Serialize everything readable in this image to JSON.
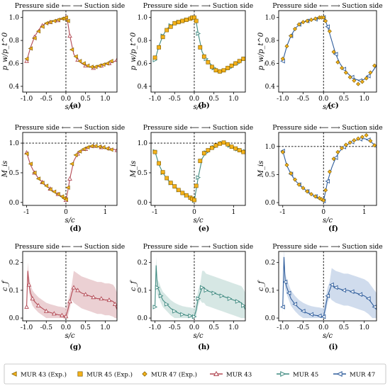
{
  "header_text": "Pressure side ⟵ ⟶ Suction side",
  "header_left": "Pressure side",
  "header_right": "Suction side",
  "panel_labels": [
    "(a)",
    "(b)",
    "(c)",
    "(d)",
    "(e)",
    "(f)",
    "(g)",
    "(h)",
    "(i)"
  ],
  "colors": {
    "mur43_line": "#b34a55",
    "mur45_line": "#3f8a80",
    "mur47_line": "#2f5d9c",
    "exp_fill": "#f5b21a",
    "exp_edge": "#7a5a00",
    "mur43_band": "#e7c8cb",
    "mur45_band": "#cfe3df",
    "mur47_band": "#c8d6ea"
  },
  "legend": [
    {
      "label": "MUR 43 (Exp.)",
      "icon": "left-triangle-marker"
    },
    {
      "label": "MUR 45 (Exp.)",
      "icon": "square-marker"
    },
    {
      "label": "MUR 47 (Exp.)",
      "icon": "diamond-marker"
    },
    {
      "label": "MUR 43",
      "icon": "line-up-triangle"
    },
    {
      "label": "MUR 45",
      "icon": "line-right-triangle"
    },
    {
      "label": "MUR 47",
      "icon": "line-left-triangle"
    }
  ],
  "chart_data": [
    {
      "type": "line",
      "panel": "(a)",
      "xlabel": "s/c",
      "ylabel": "p_w/p_t^0",
      "xlim": [
        -1.1,
        1.3
      ],
      "ylim": [
        0.35,
        1.06
      ],
      "xticks": [
        -1.0,
        -0.5,
        0.0,
        0.5,
        1.0
      ],
      "yticks": [
        0.4,
        0.6,
        0.8,
        1.0
      ],
      "vline": 0.0,
      "series": [
        {
          "name": "MUR 43",
          "x": [
            -1.0,
            -0.9,
            -0.8,
            -0.7,
            -0.6,
            -0.5,
            -0.4,
            -0.3,
            -0.2,
            -0.1,
            0.0,
            0.05,
            0.1,
            0.2,
            0.3,
            0.4,
            0.5,
            0.6,
            0.7,
            0.8,
            0.9,
            1.0,
            1.1,
            1.2,
            1.3
          ],
          "y": [
            0.62,
            0.74,
            0.83,
            0.89,
            0.93,
            0.95,
            0.96,
            0.97,
            0.975,
            0.985,
            1.0,
            0.95,
            0.84,
            0.68,
            0.63,
            0.6,
            0.58,
            0.57,
            0.56,
            0.57,
            0.58,
            0.59,
            0.6,
            0.61,
            0.63
          ]
        }
      ],
      "experimental": {
        "name": "MUR 43 (Exp.)",
        "x": [
          -1.0,
          -0.9,
          -0.8,
          -0.7,
          -0.6,
          -0.5,
          -0.4,
          -0.3,
          -0.2,
          -0.1,
          -0.05,
          0.0,
          0.05,
          0.15,
          0.25,
          0.35,
          0.45,
          0.55,
          0.65,
          0.75,
          0.85,
          0.95,
          1.05,
          1.15
        ],
        "y": [
          0.64,
          0.73,
          0.82,
          0.88,
          0.92,
          0.95,
          0.96,
          0.97,
          0.98,
          0.99,
          0.99,
          1.0,
          0.97,
          0.72,
          0.66,
          0.62,
          0.6,
          0.58,
          0.57,
          0.57,
          0.58,
          0.59,
          0.6,
          0.62
        ]
      }
    },
    {
      "type": "line",
      "panel": "(b)",
      "xlabel": "s/c",
      "ylabel": "p_w/p_t^0",
      "xlim": [
        -1.1,
        1.3
      ],
      "ylim": [
        0.35,
        1.06
      ],
      "xticks": [
        -1.0,
        -0.5,
        0.0,
        0.5,
        1.0
      ],
      "yticks": [
        0.4,
        0.6,
        0.8,
        1.0
      ],
      "vline": 0.0,
      "series": [
        {
          "name": "MUR 45",
          "x": [
            -1.0,
            -0.9,
            -0.8,
            -0.7,
            -0.6,
            -0.5,
            -0.4,
            -0.3,
            -0.2,
            -0.1,
            0.0,
            0.05,
            0.1,
            0.2,
            0.3,
            0.4,
            0.5,
            0.6,
            0.7,
            0.8,
            0.9,
            1.0,
            1.1,
            1.2,
            1.3
          ],
          "y": [
            0.63,
            0.75,
            0.84,
            0.9,
            0.93,
            0.95,
            0.96,
            0.97,
            0.98,
            0.99,
            1.0,
            0.96,
            0.86,
            0.7,
            0.64,
            0.6,
            0.56,
            0.54,
            0.53,
            0.54,
            0.56,
            0.58,
            0.6,
            0.62,
            0.64
          ]
        }
      ],
      "experimental": {
        "name": "MUR 45 (Exp.)",
        "x": [
          -1.0,
          -0.9,
          -0.8,
          -0.7,
          -0.6,
          -0.5,
          -0.4,
          -0.3,
          -0.2,
          -0.1,
          -0.05,
          0.0,
          0.05,
          0.15,
          0.25,
          0.35,
          0.45,
          0.55,
          0.65,
          0.75,
          0.85,
          0.95,
          1.05,
          1.15,
          1.25
        ],
        "y": [
          0.65,
          0.74,
          0.83,
          0.89,
          0.92,
          0.95,
          0.96,
          0.97,
          0.98,
          0.99,
          1.0,
          1.0,
          0.97,
          0.74,
          0.66,
          0.61,
          0.57,
          0.54,
          0.53,
          0.54,
          0.56,
          0.58,
          0.6,
          0.62,
          0.64
        ]
      }
    },
    {
      "type": "line",
      "panel": "(c)",
      "xlabel": "s/c",
      "ylabel": "p_w/p_t^0",
      "xlim": [
        -1.1,
        1.3
      ],
      "ylim": [
        0.35,
        1.06
      ],
      "xticks": [
        -1.0,
        -0.5,
        0.0,
        0.5,
        1.0
      ],
      "yticks": [
        0.4,
        0.6,
        0.8,
        1.0
      ],
      "vline": 0.0,
      "series": [
        {
          "name": "MUR 47",
          "x": [
            -1.0,
            -0.9,
            -0.8,
            -0.7,
            -0.6,
            -0.5,
            -0.4,
            -0.3,
            -0.2,
            -0.1,
            0.0,
            0.05,
            0.1,
            0.2,
            0.3,
            0.4,
            0.5,
            0.6,
            0.7,
            0.8,
            0.9,
            1.0,
            1.1,
            1.2,
            1.3
          ],
          "y": [
            0.62,
            0.75,
            0.84,
            0.9,
            0.94,
            0.96,
            0.97,
            0.98,
            0.985,
            0.99,
            1.0,
            0.97,
            0.92,
            0.8,
            0.68,
            0.6,
            0.55,
            0.51,
            0.48,
            0.46,
            0.45,
            0.46,
            0.49,
            0.53,
            0.58
          ]
        }
      ],
      "experimental": {
        "name": "MUR 47 (Exp.)",
        "x": [
          -1.0,
          -0.9,
          -0.8,
          -0.7,
          -0.6,
          -0.5,
          -0.4,
          -0.3,
          -0.2,
          -0.1,
          -0.05,
          0.0,
          0.05,
          0.15,
          0.25,
          0.35,
          0.45,
          0.55,
          0.65,
          0.75,
          0.85,
          0.95,
          1.05,
          1.15,
          1.25
        ],
        "y": [
          0.64,
          0.75,
          0.84,
          0.9,
          0.94,
          0.96,
          0.97,
          0.98,
          0.99,
          1.0,
          1.0,
          1.0,
          0.97,
          0.88,
          0.7,
          0.61,
          0.56,
          0.52,
          0.48,
          0.45,
          0.42,
          0.44,
          0.47,
          0.52,
          0.58
        ]
      }
    },
    {
      "type": "line",
      "panel": "(d)",
      "xlabel": "s/c",
      "ylabel": "M_is",
      "xlim": [
        -1.1,
        1.3
      ],
      "ylim": [
        -0.05,
        1.18
      ],
      "xticks": [
        -1,
        0,
        1
      ],
      "yticks": [
        0.0,
        0.5,
        1.0
      ],
      "vline": 0.0,
      "hline": 1.0,
      "series": [
        {
          "name": "MUR 43",
          "x": [
            -1.0,
            -0.9,
            -0.8,
            -0.7,
            -0.6,
            -0.5,
            -0.4,
            -0.3,
            -0.2,
            -0.1,
            0.0,
            0.05,
            0.1,
            0.2,
            0.3,
            0.4,
            0.5,
            0.6,
            0.7,
            0.8,
            0.9,
            1.0,
            1.1,
            1.2,
            1.3
          ],
          "y": [
            0.84,
            0.63,
            0.5,
            0.41,
            0.34,
            0.28,
            0.23,
            0.18,
            0.14,
            0.1,
            0.04,
            0.2,
            0.4,
            0.7,
            0.82,
            0.87,
            0.9,
            0.93,
            0.95,
            0.94,
            0.93,
            0.92,
            0.91,
            0.9,
            0.88
          ]
        }
      ],
      "experimental": {
        "name": "MUR 43 (Exp.)",
        "x": [
          -1.0,
          -0.9,
          -0.8,
          -0.7,
          -0.6,
          -0.5,
          -0.4,
          -0.3,
          -0.2,
          -0.1,
          -0.05,
          0.0,
          0.05,
          0.15,
          0.25,
          0.35,
          0.45,
          0.55,
          0.65,
          0.75,
          0.85,
          0.95,
          1.05,
          1.15
        ],
        "y": [
          0.82,
          0.65,
          0.5,
          0.4,
          0.33,
          0.28,
          0.22,
          0.18,
          0.14,
          0.1,
          0.07,
          0.05,
          0.25,
          0.65,
          0.8,
          0.86,
          0.9,
          0.93,
          0.95,
          0.95,
          0.94,
          0.93,
          0.91,
          0.89
        ]
      }
    },
    {
      "type": "line",
      "panel": "(e)",
      "xlabel": "s/c",
      "ylabel": "M_is",
      "xlim": [
        -1.1,
        1.3
      ],
      "ylim": [
        -0.05,
        1.18
      ],
      "xticks": [
        -1,
        0,
        1
      ],
      "yticks": [
        0.0,
        0.5,
        1.0
      ],
      "vline": 0.0,
      "hline": 1.0,
      "series": [
        {
          "name": "MUR 45",
          "x": [
            -1.0,
            -0.9,
            -0.8,
            -0.7,
            -0.6,
            -0.5,
            -0.4,
            -0.3,
            -0.2,
            -0.1,
            0.0,
            0.05,
            0.1,
            0.2,
            0.3,
            0.4,
            0.5,
            0.6,
            0.7,
            0.8,
            0.9,
            1.0,
            1.1,
            1.2,
            1.3
          ],
          "y": [
            0.86,
            0.64,
            0.5,
            0.4,
            0.33,
            0.27,
            0.21,
            0.16,
            0.12,
            0.08,
            0.03,
            0.22,
            0.42,
            0.74,
            0.84,
            0.89,
            0.93,
            0.97,
            1.0,
            0.99,
            0.96,
            0.93,
            0.9,
            0.88,
            0.86
          ]
        }
      ],
      "experimental": {
        "name": "MUR 45 (Exp.)",
        "x": [
          -1.0,
          -0.9,
          -0.8,
          -0.7,
          -0.6,
          -0.5,
          -0.4,
          -0.3,
          -0.2,
          -0.1,
          -0.05,
          0.0,
          0.05,
          0.15,
          0.25,
          0.35,
          0.45,
          0.55,
          0.65,
          0.75,
          0.85,
          0.95,
          1.05,
          1.15,
          1.25
        ],
        "y": [
          0.85,
          0.66,
          0.51,
          0.41,
          0.33,
          0.27,
          0.21,
          0.16,
          0.12,
          0.08,
          0.06,
          0.04,
          0.28,
          0.7,
          0.83,
          0.88,
          0.92,
          0.96,
          0.99,
          1.01,
          0.98,
          0.94,
          0.91,
          0.88,
          0.85
        ]
      }
    },
    {
      "type": "line",
      "panel": "(f)",
      "xlabel": "s/c",
      "ylabel": "M_is",
      "xlim": [
        -1.1,
        1.3
      ],
      "ylim": [
        -0.05,
        1.25
      ],
      "xticks": [
        -1,
        0,
        1
      ],
      "yticks": [
        0.0,
        0.5,
        1.0
      ],
      "vline": 0.0,
      "hline": 1.0,
      "series": [
        {
          "name": "MUR 47",
          "x": [
            -1.0,
            -0.9,
            -0.8,
            -0.7,
            -0.6,
            -0.5,
            -0.4,
            -0.3,
            -0.2,
            -0.1,
            0.0,
            0.05,
            0.1,
            0.2,
            0.3,
            0.4,
            0.5,
            0.6,
            0.7,
            0.8,
            0.9,
            1.0,
            1.1,
            1.2,
            1.3
          ],
          "y": [
            0.92,
            0.66,
            0.51,
            0.4,
            0.32,
            0.26,
            0.2,
            0.15,
            0.11,
            0.08,
            0.03,
            0.2,
            0.38,
            0.62,
            0.8,
            0.92,
            0.99,
            1.04,
            1.08,
            1.11,
            1.13,
            1.14,
            1.12,
            1.06,
            1.0
          ]
        }
      ],
      "experimental": {
        "name": "MUR 47 (Exp.)",
        "x": [
          -1.0,
          -0.9,
          -0.8,
          -0.7,
          -0.6,
          -0.5,
          -0.4,
          -0.3,
          -0.2,
          -0.1,
          -0.05,
          0.0,
          0.05,
          0.15,
          0.25,
          0.35,
          0.45,
          0.55,
          0.65,
          0.75,
          0.85,
          0.95,
          1.05,
          1.15,
          1.25
        ],
        "y": [
          0.9,
          0.67,
          0.52,
          0.41,
          0.32,
          0.26,
          0.2,
          0.15,
          0.11,
          0.08,
          0.06,
          0.04,
          0.22,
          0.55,
          0.78,
          0.9,
          0.97,
          1.03,
          1.07,
          1.11,
          1.14,
          1.17,
          1.2,
          1.1,
          1.02
        ]
      }
    },
    {
      "type": "line",
      "panel": "(g)",
      "xlabel": "s/c",
      "ylabel": "c_f",
      "xlim": [
        -1.1,
        1.3
      ],
      "ylim": [
        -0.01,
        0.24
      ],
      "xticks": [
        -1.0,
        -0.5,
        0.0,
        0.5,
        1.0
      ],
      "yticks": [
        0.0,
        0.1,
        0.2
      ],
      "vline": 0.0,
      "series": [
        {
          "name": "MUR 43",
          "x": [
            -1.0,
            -0.97,
            -0.94,
            -0.9,
            -0.85,
            -0.8,
            -0.7,
            -0.6,
            -0.5,
            -0.4,
            -0.3,
            -0.2,
            -0.1,
            -0.05,
            0.0,
            0.05,
            0.1,
            0.15,
            0.2,
            0.25,
            0.3,
            0.4,
            0.5,
            0.6,
            0.7,
            0.8,
            0.9,
            1.0,
            1.1,
            1.2,
            1.25,
            1.3
          ],
          "y": [
            0.04,
            0.17,
            0.12,
            0.09,
            0.07,
            0.06,
            0.045,
            0.035,
            0.025,
            0.02,
            0.016,
            0.012,
            0.01,
            0.008,
            0.006,
            0.03,
            0.06,
            0.09,
            0.11,
            0.105,
            0.1,
            0.09,
            0.085,
            0.08,
            0.075,
            0.07,
            0.07,
            0.065,
            0.065,
            0.06,
            0.05,
            0.03
          ]
        }
      ]
    },
    {
      "type": "line",
      "panel": "(h)",
      "xlabel": "s/c",
      "ylabel": "c_f",
      "xlim": [
        -1.1,
        1.3
      ],
      "ylim": [
        -0.01,
        0.24
      ],
      "xticks": [
        -1.0,
        -0.5,
        0.0,
        0.5,
        1.0
      ],
      "yticks": [
        0.0,
        0.1,
        0.2
      ],
      "vline": 0.0,
      "series": [
        {
          "name": "MUR 45",
          "x": [
            -1.0,
            -0.97,
            -0.94,
            -0.9,
            -0.85,
            -0.8,
            -0.7,
            -0.6,
            -0.5,
            -0.4,
            -0.3,
            -0.2,
            -0.1,
            -0.05,
            0.0,
            0.05,
            0.1,
            0.15,
            0.2,
            0.25,
            0.3,
            0.4,
            0.5,
            0.6,
            0.7,
            0.8,
            0.9,
            1.0,
            1.1,
            1.2,
            1.25,
            1.3
          ],
          "y": [
            0.04,
            0.19,
            0.11,
            0.1,
            0.08,
            0.065,
            0.05,
            0.035,
            0.025,
            0.018,
            0.013,
            0.01,
            0.008,
            0.006,
            0.005,
            0.03,
            0.07,
            0.09,
            0.11,
            0.11,
            0.1,
            0.095,
            0.09,
            0.085,
            0.08,
            0.075,
            0.07,
            0.065,
            0.06,
            0.055,
            0.045,
            0.03
          ]
        }
      ]
    },
    {
      "type": "line",
      "panel": "(i)",
      "xlabel": "s/c",
      "ylabel": "c_f",
      "xlim": [
        -1.1,
        1.3
      ],
      "ylim": [
        -0.01,
        0.24
      ],
      "xticks": [
        -1.0,
        -0.5,
        0.0,
        0.5,
        1.0
      ],
      "yticks": [
        0.0,
        0.1,
        0.2
      ],
      "vline": 0.0,
      "series": [
        {
          "name": "MUR 47",
          "x": [
            -1.0,
            -0.97,
            -0.94,
            -0.9,
            -0.85,
            -0.8,
            -0.7,
            -0.6,
            -0.5,
            -0.4,
            -0.3,
            -0.2,
            -0.1,
            -0.05,
            0.0,
            0.05,
            0.1,
            0.15,
            0.2,
            0.25,
            0.3,
            0.4,
            0.5,
            0.6,
            0.7,
            0.8,
            0.9,
            1.0,
            1.1,
            1.2,
            1.25,
            1.3
          ],
          "y": [
            0.04,
            0.22,
            0.13,
            0.11,
            0.09,
            0.07,
            0.05,
            0.035,
            0.025,
            0.018,
            0.013,
            0.01,
            0.008,
            0.006,
            0.005,
            0.04,
            0.08,
            0.1,
            0.12,
            0.115,
            0.11,
            0.105,
            0.1,
            0.1,
            0.095,
            0.09,
            0.085,
            0.08,
            0.07,
            0.05,
            0.04,
            0.03
          ]
        }
      ]
    }
  ]
}
